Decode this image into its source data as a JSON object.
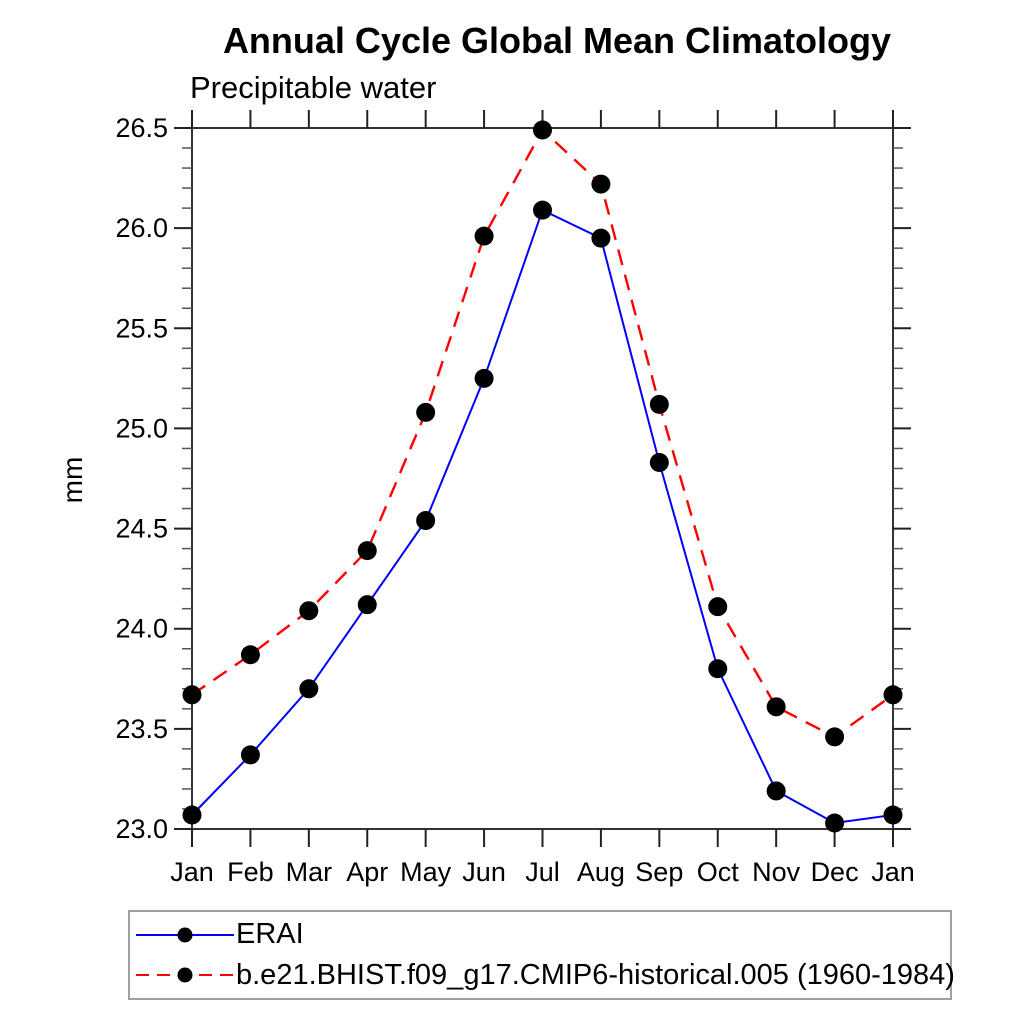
{
  "chart_data": {
    "type": "line",
    "title": "Annual Cycle Global Mean Climatology",
    "subtitle": "Precipitable water",
    "ylabel": "mm",
    "xlabel": "",
    "categories": [
      "Jan",
      "Feb",
      "Mar",
      "Apr",
      "May",
      "Jun",
      "Jul",
      "Aug",
      "Sep",
      "Oct",
      "Nov",
      "Dec",
      "Jan"
    ],
    "ylim": [
      23.0,
      26.5
    ],
    "ytick_major": 0.5,
    "ytick_minor": 0.1,
    "grid": false,
    "frame": "all-four-sides",
    "legend_position": "bottom-left",
    "series": [
      {
        "name": "ERAI",
        "line_color": "#0000ff",
        "line_style": "solid",
        "marker": "filled-circle",
        "marker_color": "#000000",
        "values": [
          23.07,
          23.37,
          23.7,
          24.12,
          24.54,
          25.25,
          26.09,
          25.95,
          24.83,
          23.8,
          23.19,
          23.03,
          23.07
        ]
      },
      {
        "name": "b.e21.BHIST.f09_g17.CMIP6-historical.005 (1960-1984)",
        "line_color": "#ff0000",
        "line_style": "dashed",
        "marker": "filled-circle",
        "marker_color": "#000000",
        "values": [
          23.67,
          23.87,
          24.09,
          24.39,
          25.08,
          25.96,
          26.49,
          26.22,
          25.12,
          24.11,
          23.61,
          23.46,
          23.67
        ]
      }
    ]
  }
}
